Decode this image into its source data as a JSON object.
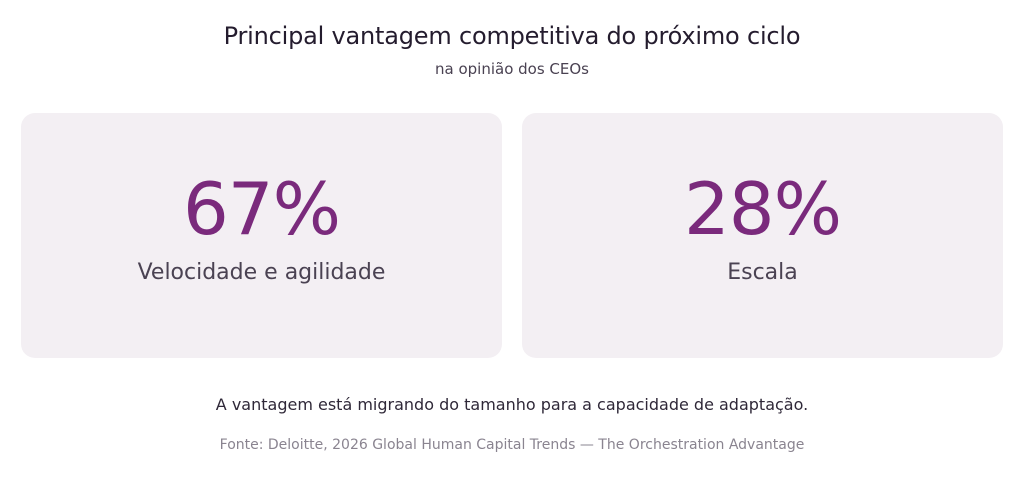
{
  "header": {
    "title": "Principal vantagem competitiva do próximo ciclo",
    "subtitle": "na opinião dos CEOs"
  },
  "stats": [
    {
      "value": "67%",
      "label": "Velocidade e agilidade"
    },
    {
      "value": "28%",
      "label": "Escala"
    }
  ],
  "footer": {
    "note": "A vantagem está migrando do tamanho para a capacidade de adaptação.",
    "source": "Fonte: Deloitte, 2026 Global Human Capital Trends — The Orchestration Advantage"
  },
  "colors": {
    "accent": "#7a2a7c",
    "card_background": "#f3eff3"
  }
}
